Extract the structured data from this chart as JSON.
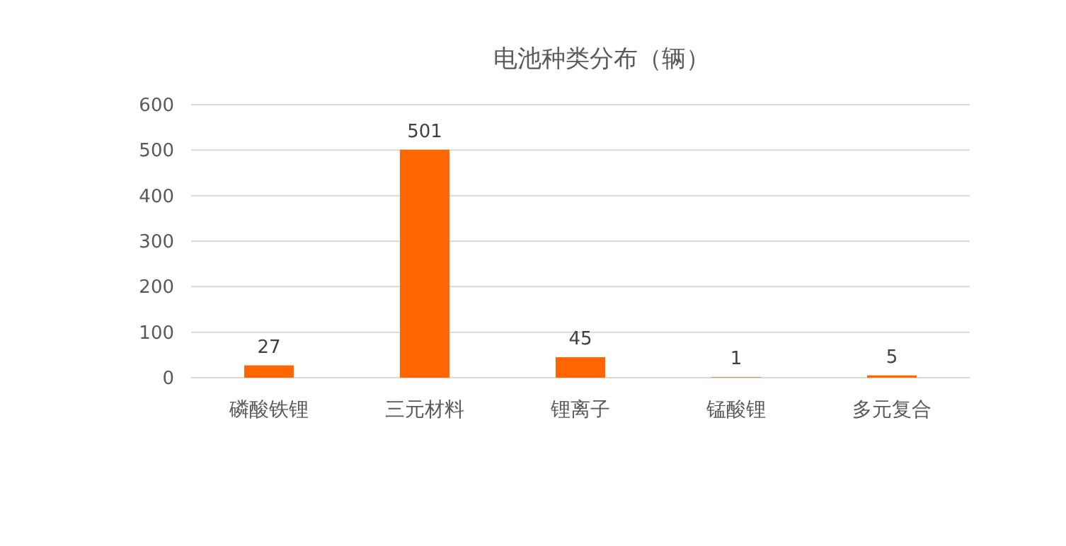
{
  "chart_data": {
    "type": "bar",
    "title": "电池种类分布（辆）",
    "categories": [
      "磷酸铁锂",
      "三元材料",
      "锂离子",
      "锰酸锂",
      "多元复合"
    ],
    "values": [
      27,
      501,
      45,
      1,
      5
    ],
    "color": "#ff6600",
    "ylim": [
      0,
      600
    ],
    "yticks": [
      0,
      100,
      200,
      300,
      400,
      500,
      600
    ],
    "grid": "y",
    "data_labels": true
  }
}
